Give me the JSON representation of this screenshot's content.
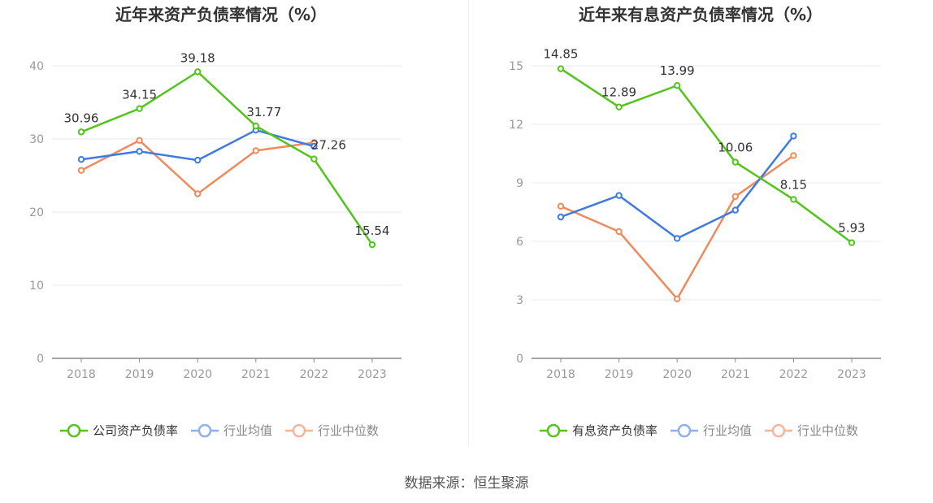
{
  "source": "数据来源：恒生聚源",
  "colors": {
    "company": "#52c41a",
    "avg": "#3f7ae0",
    "median": "#f08a5d"
  },
  "chart_data": [
    {
      "type": "line",
      "title": "近年来资产负债率情况（%）",
      "categories": [
        "2018",
        "2019",
        "2020",
        "2021",
        "2022",
        "2023"
      ],
      "ylim": [
        0,
        40
      ],
      "yticks": [
        "0",
        "10",
        "20",
        "30",
        "40"
      ],
      "grid": true,
      "legend_position": "bottom",
      "series": [
        {
          "name": "公司资产负债率",
          "values": [
            30.96,
            34.15,
            39.18,
            31.77,
            27.26,
            15.54
          ],
          "labels": [
            "30.96",
            "34.15",
            "39.18",
            "31.77",
            "27.26",
            "15.54"
          ]
        },
        {
          "name": "行业均值",
          "values": [
            27.2,
            28.3,
            27.1,
            31.2,
            29.0,
            null
          ]
        },
        {
          "name": "行业中位数",
          "values": [
            25.7,
            29.8,
            22.5,
            28.4,
            29.5,
            null
          ]
        }
      ]
    },
    {
      "type": "line",
      "title": "近年来有息资产负债率情况（%）",
      "categories": [
        "2018",
        "2019",
        "2020",
        "2021",
        "2022",
        "2023"
      ],
      "ylim": [
        0,
        15
      ],
      "yticks": [
        "0",
        "3",
        "6",
        "9",
        "12",
        "15"
      ],
      "grid": true,
      "legend_position": "bottom",
      "series": [
        {
          "name": "有息资产负债率",
          "values": [
            14.85,
            12.89,
            13.99,
            10.06,
            8.15,
            5.93
          ],
          "labels": [
            "14.85",
            "12.89",
            "13.99",
            "10.06",
            "8.15",
            "5.93"
          ]
        },
        {
          "name": "行业均值",
          "values": [
            7.25,
            8.35,
            6.15,
            7.6,
            11.4,
            null
          ]
        },
        {
          "name": "行业中位数",
          "values": [
            7.8,
            6.5,
            3.05,
            8.3,
            10.4,
            null
          ]
        }
      ]
    }
  ]
}
